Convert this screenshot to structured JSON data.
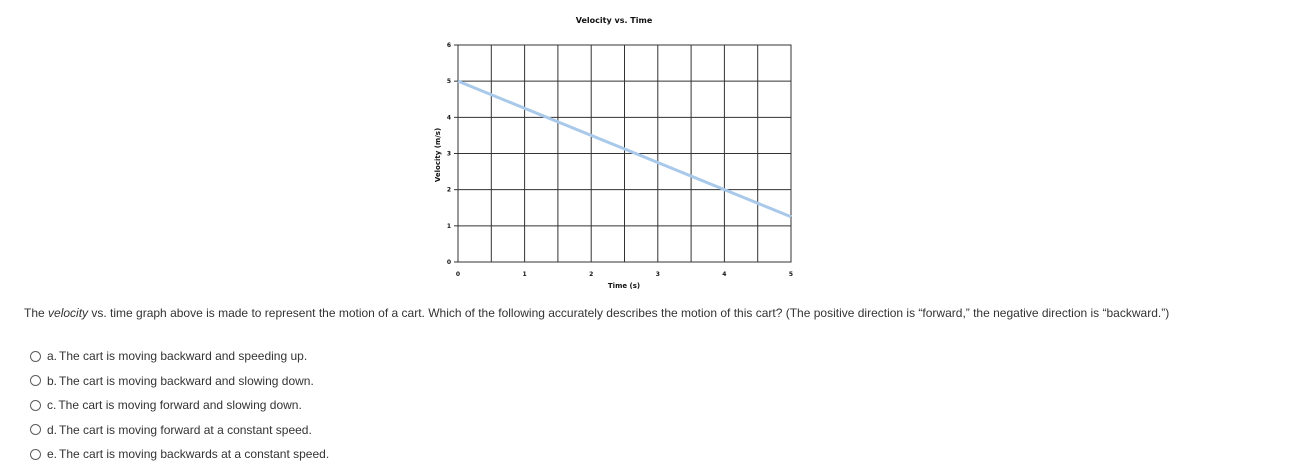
{
  "chart_data": {
    "type": "line",
    "title": "Velocity vs. Time",
    "xlabel": "Time (s)",
    "ylabel": "Velocity (m/s)",
    "xlim": [
      0,
      5
    ],
    "ylim": [
      0,
      6
    ],
    "x_ticks": [
      "0",
      "1",
      "2",
      "3",
      "4",
      "5"
    ],
    "y_ticks": [
      "0",
      "1",
      "2",
      "3",
      "4",
      "5",
      "6"
    ],
    "grid": true,
    "series": [
      {
        "x": [
          0,
          5
        ],
        "y": [
          5,
          1.25
        ],
        "color": "#a9c9ea"
      }
    ]
  },
  "question": {
    "before": "The ",
    "emphasis": "velocity",
    "after": " vs. time graph above is made to represent the motion of a cart.  Which of the following accurately describes the motion of this cart?  (The positive direction is “forward,” the negative direction is “backward.”)"
  },
  "options": [
    {
      "letter": "a.",
      "text": "The cart is moving backward and speeding up."
    },
    {
      "letter": "b.",
      "text": "The cart is moving backward and slowing down."
    },
    {
      "letter": "c.",
      "text": "The cart is moving forward and slowing down."
    },
    {
      "letter": "d.",
      "text": "The cart is moving forward at a constant speed."
    },
    {
      "letter": "e.",
      "text": "The cart is moving backwards at a constant speed."
    }
  ]
}
